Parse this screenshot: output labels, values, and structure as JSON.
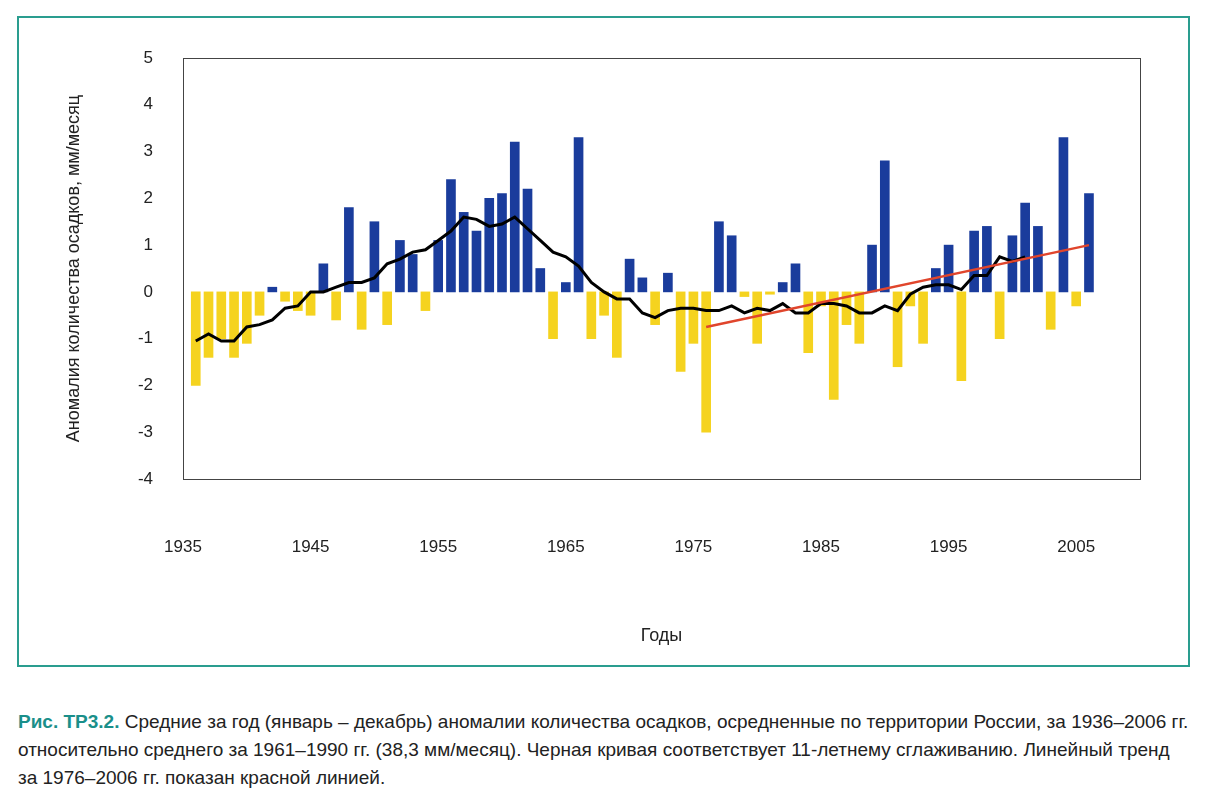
{
  "chart_data": {
    "type": "bar",
    "y_label": "Аномалия количества осадков, мм/месяц",
    "x_label": "Годы",
    "xlim": [
      1935,
      2010
    ],
    "xticks": [
      1935,
      1945,
      1955,
      1965,
      1975,
      1985,
      1995,
      2005
    ],
    "ylim": [
      -4,
      5
    ],
    "yticks": [
      -4,
      -3,
      -2,
      -1,
      0,
      1,
      2,
      3,
      4,
      5
    ],
    "grid": false,
    "series": [
      {
        "type": "bar",
        "x": [
          1936,
          1937,
          1938,
          1939,
          1940,
          1941,
          1942,
          1943,
          1944,
          1945,
          1946,
          1947,
          1948,
          1949,
          1950,
          1951,
          1952,
          1953,
          1954,
          1955,
          1956,
          1957,
          1958,
          1959,
          1960,
          1961,
          1962,
          1963,
          1964,
          1965,
          1966,
          1967,
          1968,
          1969,
          1970,
          1971,
          1972,
          1973,
          1974,
          1975,
          1976,
          1977,
          1978,
          1979,
          1980,
          1981,
          1982,
          1983,
          1984,
          1985,
          1986,
          1987,
          1988,
          1989,
          1990,
          1991,
          1992,
          1993,
          1994,
          1995,
          1996,
          1997,
          1998,
          1999,
          2000,
          2001,
          2002,
          2003,
          2004,
          2005,
          2006
        ],
        "values": [
          -2.0,
          -1.4,
          -1.0,
          -1.4,
          -1.1,
          -0.5,
          0.1,
          -0.2,
          -0.4,
          -0.5,
          0.6,
          -0.6,
          1.8,
          -0.8,
          1.5,
          -0.7,
          1.1,
          0.8,
          -0.4,
          1.1,
          2.4,
          1.7,
          1.3,
          2.0,
          2.1,
          3.2,
          2.2,
          0.5,
          -1.0,
          0.2,
          3.3,
          -1.0,
          -0.5,
          -1.4,
          0.7,
          0.3,
          -0.7,
          0.4,
          -1.7,
          -1.1,
          -3.0,
          1.5,
          1.2,
          -0.1,
          -1.1,
          -0.05,
          0.2,
          0.6,
          -1.3,
          -0.3,
          -2.3,
          -0.7,
          -1.1,
          1.0,
          2.8,
          -1.6,
          -0.3,
          -1.1,
          0.5,
          1.0,
          -1.9,
          1.3,
          1.4,
          -1.0,
          1.2,
          1.9,
          1.4,
          -0.8,
          3.3,
          -0.3,
          2.1
        ],
        "colors": [
          "#f5d31f",
          "#f5d31f",
          "#f5d31f",
          "#f5d31f",
          "#f5d31f",
          "#f5d31f",
          "#1a3c9c",
          "#f5d31f",
          "#f5d31f",
          "#f5d31f",
          "#1a3c9c",
          "#f5d31f",
          "#1a3c9c",
          "#f5d31f",
          "#1a3c9c",
          "#f5d31f",
          "#1a3c9c",
          "#1a3c9c",
          "#f5d31f",
          "#1a3c9c",
          "#1a3c9c",
          "#1a3c9c",
          "#1a3c9c",
          "#1a3c9c",
          "#1a3c9c",
          "#1a3c9c",
          "#1a3c9c",
          "#1a3c9c",
          "#f5d31f",
          "#1a3c9c",
          "#1a3c9c",
          "#f5d31f",
          "#f5d31f",
          "#f5d31f",
          "#1a3c9c",
          "#1a3c9c",
          "#f5d31f",
          "#1a3c9c",
          "#f5d31f",
          "#f5d31f",
          "#f5d31f",
          "#1a3c9c",
          "#1a3c9c",
          "#f5d31f",
          "#f5d31f",
          "#f5d31f",
          "#1a3c9c",
          "#1a3c9c",
          "#f5d31f",
          "#f5d31f",
          "#f5d31f",
          "#f5d31f",
          "#f5d31f",
          "#1a3c9c",
          "#1a3c9c",
          "#f5d31f",
          "#f5d31f",
          "#f5d31f",
          "#1a3c9c",
          "#1a3c9c",
          "#f5d31f",
          "#1a3c9c",
          "#1a3c9c",
          "#f5d31f",
          "#1a3c9c",
          "#1a3c9c",
          "#1a3c9c",
          "#f5d31f",
          "#1a3c9c",
          "#f5d31f",
          "#1a3c9c"
        ]
      },
      {
        "type": "line",
        "color": "#000000",
        "x": [
          1936,
          1937,
          1938,
          1939,
          1940,
          1941,
          1942,
          1943,
          1944,
          1945,
          1946,
          1947,
          1948,
          1949,
          1950,
          1951,
          1952,
          1953,
          1954,
          1955,
          1956,
          1957,
          1958,
          1959,
          1960,
          1961,
          1962,
          1963,
          1964,
          1965,
          1966,
          1967,
          1968,
          1969,
          1970,
          1971,
          1972,
          1973,
          1974,
          1975,
          1976,
          1977,
          1978,
          1979,
          1980,
          1981,
          1982,
          1983,
          1984,
          1985,
          1986,
          1987,
          1988,
          1989,
          1990,
          1991,
          1992,
          1993,
          1994,
          1995,
          1996,
          1997,
          1998,
          1999,
          2000,
          2001
        ],
        "values": [
          -1.05,
          -0.9,
          -1.05,
          -1.05,
          -0.75,
          -0.7,
          -0.6,
          -0.35,
          -0.3,
          0.0,
          0.0,
          0.1,
          0.2,
          0.2,
          0.3,
          0.6,
          0.7,
          0.85,
          0.9,
          1.1,
          1.3,
          1.6,
          1.55,
          1.4,
          1.45,
          1.6,
          1.35,
          1.1,
          0.85,
          0.75,
          0.55,
          0.2,
          0.0,
          -0.15,
          -0.15,
          -0.45,
          -0.55,
          -0.4,
          -0.35,
          -0.35,
          -0.4,
          -0.4,
          -0.3,
          -0.45,
          -0.35,
          -0.4,
          -0.25,
          -0.45,
          -0.45,
          -0.25,
          -0.25,
          -0.3,
          -0.45,
          -0.45,
          -0.3,
          -0.4,
          -0.05,
          0.1,
          0.15,
          0.15,
          0.05,
          0.35,
          0.35,
          0.75,
          0.65,
          0.75
        ]
      },
      {
        "type": "line",
        "color": "#e0452c",
        "x": [
          1976,
          2006
        ],
        "values": [
          -0.75,
          1.0
        ]
      }
    ]
  },
  "caption": {
    "label": "Рис. ТР3.2.",
    "text": "Средние за год (январь – декабрь) аномалии количества осадков, осредненные по территории России, за 1936–2006 гг. относительно среднего за 1961–1990 гг. (38,3 мм/месяц). Черная кривая соответствует 11-летнему сглаживанию. Линейный тренд за 1976–2006 гг. показан красной линией."
  }
}
